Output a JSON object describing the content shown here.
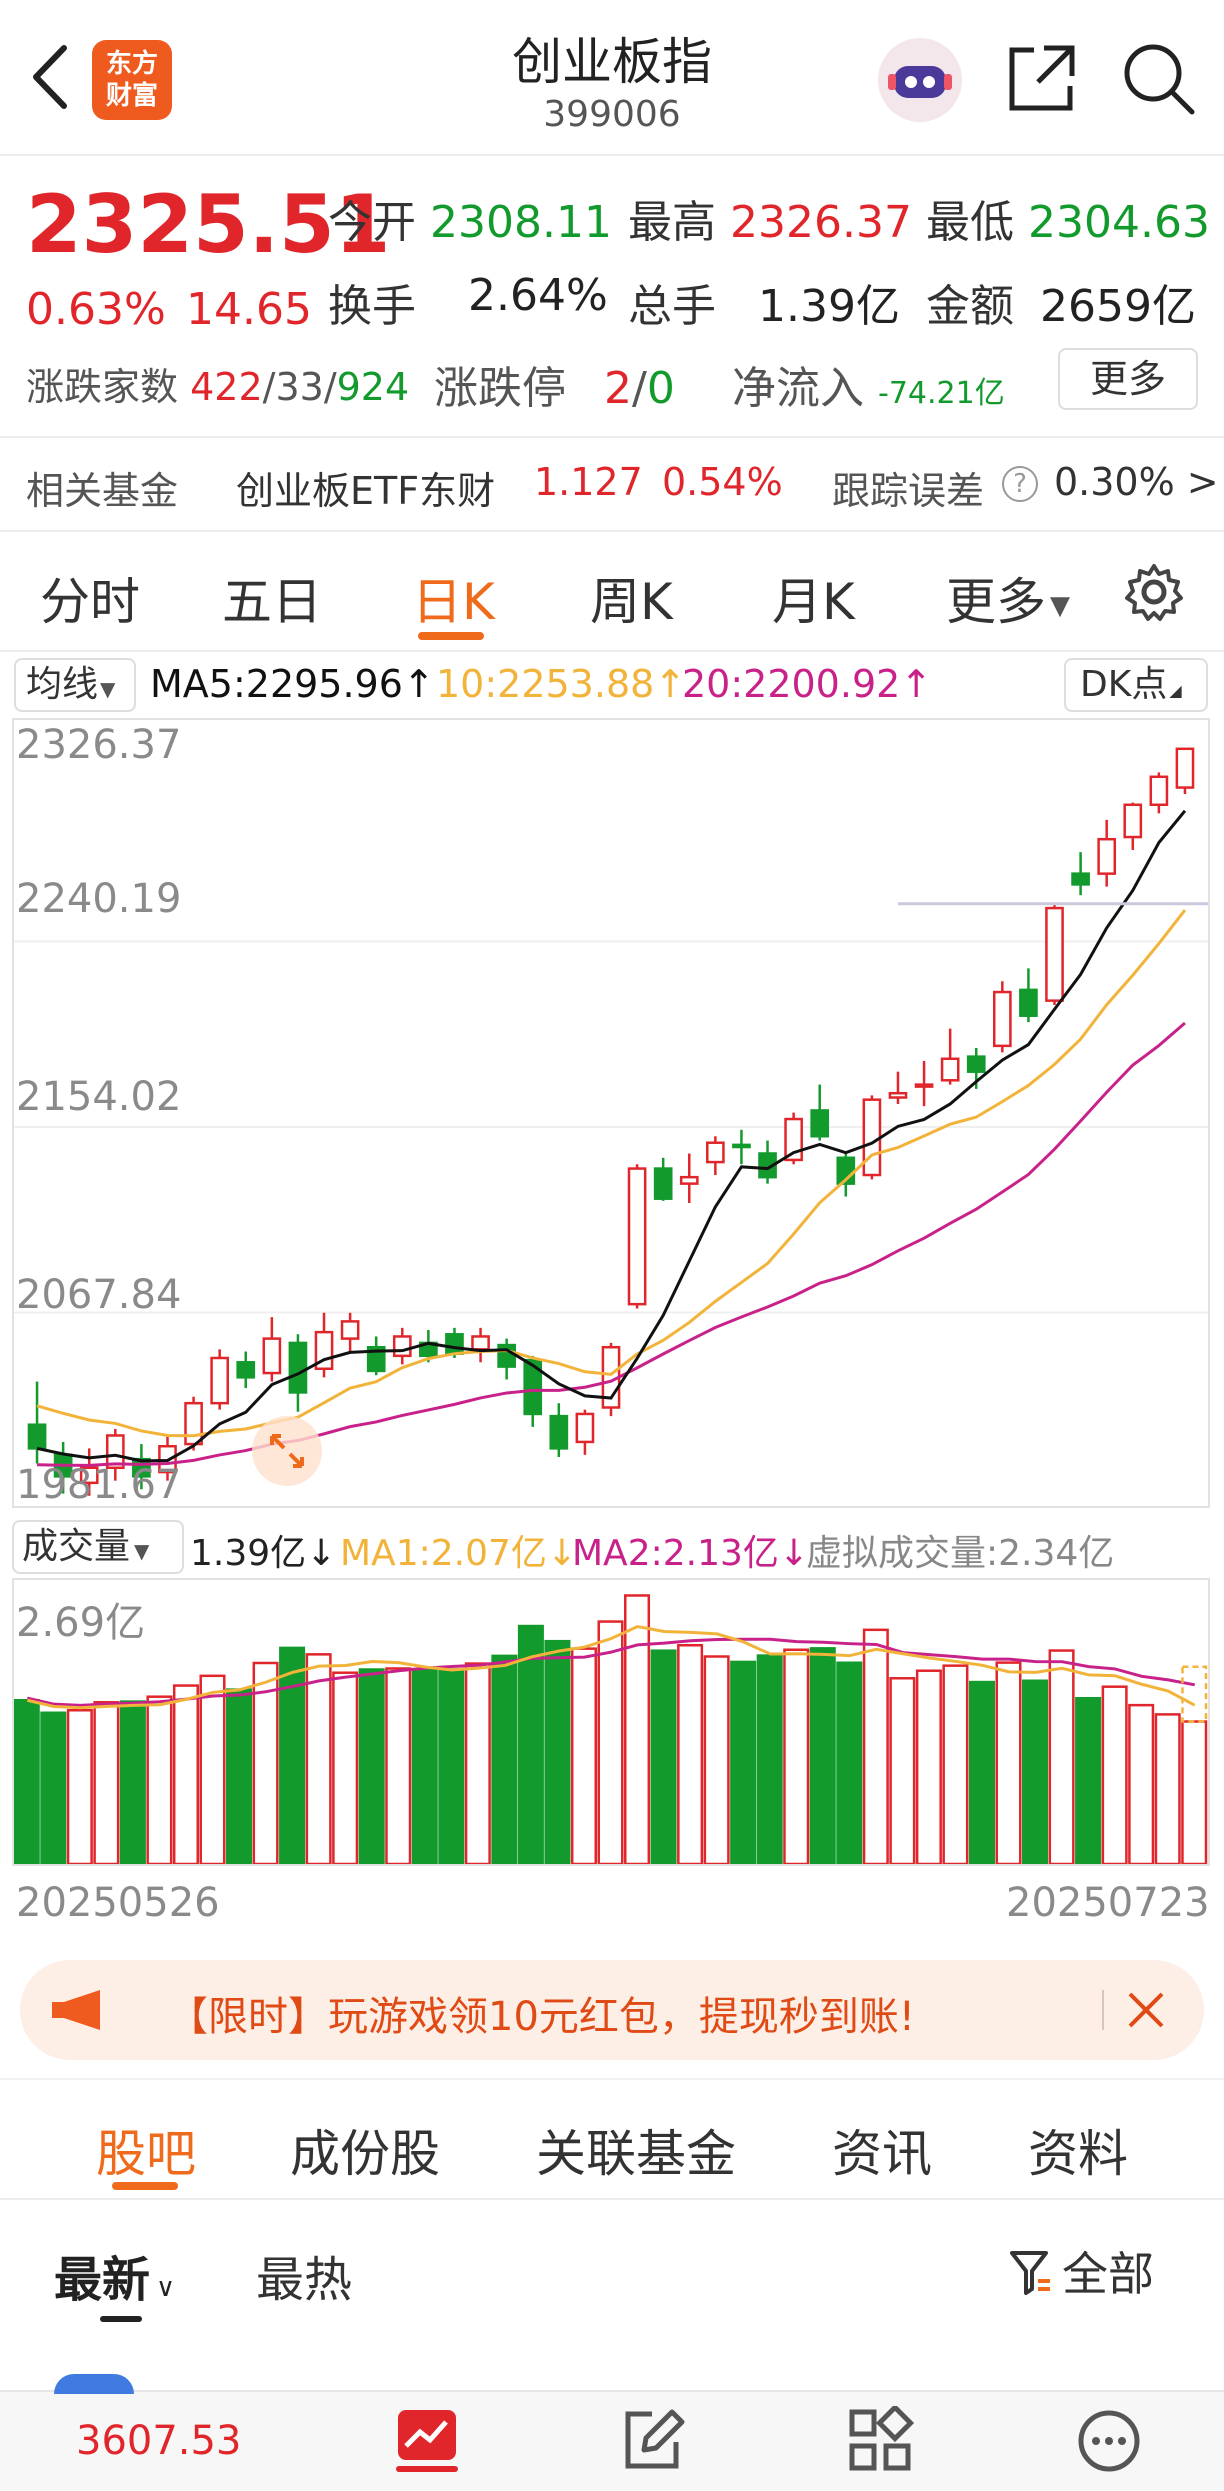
{
  "header": {
    "title": "创业板指",
    "code": "399006",
    "logo_line1": "东方",
    "logo_line2": "财富"
  },
  "quote": {
    "price": "2325.51",
    "change_pct": "0.63%",
    "change": "14.65",
    "open_label": "今开",
    "open": "2308.11",
    "high_label": "最高",
    "high": "2326.37",
    "low_label": "最低",
    "low": "2304.63",
    "turnover_label": "换手",
    "turnover": "2.64%",
    "volume_label": "总手",
    "volume": "1.39亿",
    "amount_label": "金额",
    "amount": "2659亿",
    "breadth_label": "涨跌家数",
    "breadth_up": "422",
    "breadth_flat": "33",
    "breadth_down": "924",
    "limit_label": "涨跌停",
    "limit_up": "2",
    "limit_down": "0",
    "netflow_label": "净流入",
    "netflow": "-74.21亿",
    "more_button": "更多"
  },
  "fund": {
    "label": "相关基金",
    "name": "创业板ETF东财",
    "price": "1.127",
    "pct": "0.54%",
    "tracking_label": "跟踪误差",
    "tracking_value": "0.30% >"
  },
  "chart_tabs": [
    "分时",
    "五日",
    "日K",
    "周K",
    "月K",
    "更多"
  ],
  "chart_tab_active": "日K",
  "ma_bar": {
    "selector": "均线",
    "ma5": "MA5:2295.96↑",
    "ma10": "10:2253.88↑",
    "ma20": "20:2200.92↑",
    "dk_button": "DK点"
  },
  "vol_bar": {
    "selector": "成交量",
    "vol": "1.39亿↓",
    "ma1": "MA1:2.07亿↓",
    "ma2": "MA2:2.13亿↓",
    "virtual": "虚拟成交量:2.34亿"
  },
  "colors": {
    "up": "#e0262b",
    "down": "#139a2d",
    "accent": "#ef6a1a",
    "ma5": "#111111",
    "ma10": "#f2b33a",
    "ma20": "#c8228a"
  },
  "chart_data": {
    "type": "candlestick",
    "y_ticks": [
      "2326.37",
      "2240.19",
      "2154.02",
      "2067.84",
      "1981.67"
    ],
    "ylim": [
      1981.67,
      2326.37
    ],
    "start_date": "20250526",
    "end_date": "20250723",
    "candles": [
      {
        "o": 2012,
        "c": 2001,
        "h": 2032,
        "l": 1994
      },
      {
        "o": 1998,
        "c": 1988,
        "h": 2004,
        "l": 1980
      },
      {
        "o": 1985,
        "c": 1992,
        "h": 2001,
        "l": 1979
      },
      {
        "o": 1992,
        "c": 2007,
        "h": 2010,
        "l": 1986
      },
      {
        "o": 1996,
        "c": 1988,
        "h": 2003,
        "l": 1982
      },
      {
        "o": 1990,
        "c": 2002,
        "h": 2007,
        "l": 1986
      },
      {
        "o": 2003,
        "c": 2022,
        "h": 2025,
        "l": 2000
      },
      {
        "o": 2022,
        "c": 2043,
        "h": 2047,
        "l": 2019
      },
      {
        "o": 2041,
        "c": 2034,
        "h": 2046,
        "l": 2029
      },
      {
        "o": 2036,
        "c": 2052,
        "h": 2062,
        "l": 2032
      },
      {
        "o": 2050,
        "c": 2027,
        "h": 2054,
        "l": 2018
      },
      {
        "o": 2038,
        "c": 2055,
        "h": 2064,
        "l": 2034
      },
      {
        "o": 2052,
        "c": 2060,
        "h": 2064,
        "l": 2046
      },
      {
        "o": 2048,
        "c": 2037,
        "h": 2053,
        "l": 2035
      },
      {
        "o": 2044,
        "c": 2053,
        "h": 2057,
        "l": 2040
      },
      {
        "o": 2050,
        "c": 2044,
        "h": 2056,
        "l": 2041
      },
      {
        "o": 2054,
        "c": 2045,
        "h": 2057,
        "l": 2043
      },
      {
        "o": 2047,
        "c": 2053,
        "h": 2057,
        "l": 2041
      },
      {
        "o": 2049,
        "c": 2039,
        "h": 2052,
        "l": 2033
      },
      {
        "o": 2042,
        "c": 2017,
        "h": 2044,
        "l": 2011
      },
      {
        "o": 2016,
        "c": 2001,
        "h": 2022,
        "l": 1997
      },
      {
        "o": 2004,
        "c": 2017,
        "h": 2019,
        "l": 1998
      },
      {
        "o": 2020,
        "c": 2048,
        "h": 2050,
        "l": 2016
      },
      {
        "o": 2068,
        "c": 2131,
        "h": 2133,
        "l": 2066
      },
      {
        "o": 2131,
        "c": 2117,
        "h": 2136,
        "l": 2116
      },
      {
        "o": 2124,
        "c": 2127,
        "h": 2138,
        "l": 2115
      },
      {
        "o": 2134,
        "c": 2143,
        "h": 2146,
        "l": 2128
      },
      {
        "o": 2142,
        "c": 2141,
        "h": 2149,
        "l": 2133
      },
      {
        "o": 2138,
        "c": 2127,
        "h": 2144,
        "l": 2124
      },
      {
        "o": 2135,
        "c": 2154,
        "h": 2157,
        "l": 2133
      },
      {
        "o": 2158,
        "c": 2146,
        "h": 2170,
        "l": 2144
      },
      {
        "o": 2136,
        "c": 2124,
        "h": 2138,
        "l": 2118
      },
      {
        "o": 2128,
        "c": 2163,
        "h": 2165,
        "l": 2126
      },
      {
        "o": 2164,
        "c": 2166,
        "h": 2176,
        "l": 2161
      },
      {
        "o": 2170,
        "c": 2170,
        "h": 2181,
        "l": 2160
      },
      {
        "o": 2172,
        "c": 2182,
        "h": 2196,
        "l": 2170
      },
      {
        "o": 2183,
        "c": 2176,
        "h": 2187,
        "l": 2168
      },
      {
        "o": 2188,
        "c": 2213,
        "h": 2218,
        "l": 2185
      },
      {
        "o": 2214,
        "c": 2202,
        "h": 2224,
        "l": 2199
      },
      {
        "o": 2209,
        "c": 2252,
        "h": 2254,
        "l": 2207
      },
      {
        "o": 2268,
        "c": 2263,
        "h": 2278,
        "l": 2258
      },
      {
        "o": 2268,
        "c": 2284,
        "h": 2293,
        "l": 2262
      },
      {
        "o": 2285,
        "c": 2300,
        "h": 2301,
        "l": 2279
      },
      {
        "o": 2300,
        "c": 2313,
        "h": 2315,
        "l": 2296
      },
      {
        "o": 2308,
        "c": 2326,
        "h": 2326,
        "l": 2305
      }
    ],
    "volume_tick": "2.69亿",
    "volume_max": 2.69
  },
  "promo": {
    "text": "【限时】玩游戏领10元红包，提现秒到账!"
  },
  "bottom_tabs": [
    "股吧",
    "成份股",
    "关联基金",
    "资讯",
    "资料"
  ],
  "bottom_tab_active": "股吧",
  "sort": {
    "latest": "最新",
    "hot": "最热",
    "filter": "全部"
  },
  "footer": {
    "index_value": "3607.53"
  }
}
